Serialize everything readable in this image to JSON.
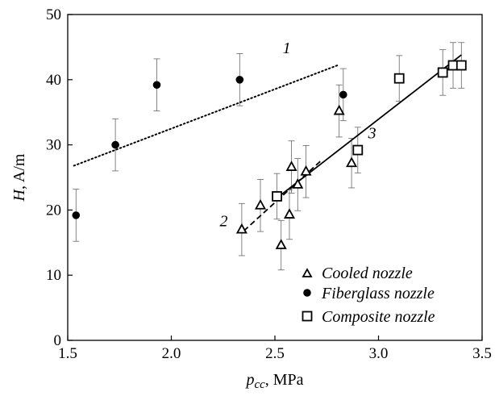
{
  "chart_data": {
    "type": "scatter",
    "x_axis": {
      "label_main": "p",
      "label_sub": "cc",
      "label_unit": ", MPa",
      "range": [
        1.5,
        3.5
      ],
      "ticks": [
        "1.5",
        "2.0",
        "2.5",
        "3.0",
        "3.5"
      ],
      "tick_values": [
        1.5,
        2.0,
        2.5,
        3.0,
        3.5
      ]
    },
    "y_axis": {
      "label_main": "H",
      "label_unit": ", A/m",
      "range": [
        0,
        50
      ],
      "ticks": [
        "0",
        "10",
        "20",
        "30",
        "40",
        "50"
      ],
      "tick_values": [
        0,
        10,
        20,
        30,
        40,
        50
      ]
    },
    "grid": false,
    "legend_position": "bottom-right",
    "series": [
      {
        "name": "Cooled nozzle",
        "marker": "triangle-open",
        "points": [
          {
            "x": 2.34,
            "y": 17.0,
            "err": 4.0
          },
          {
            "x": 2.43,
            "y": 20.7,
            "err": 4.0
          },
          {
            "x": 2.53,
            "y": 14.6,
            "err": 3.8
          },
          {
            "x": 2.57,
            "y": 19.3,
            "err": 3.8
          },
          {
            "x": 2.58,
            "y": 26.6,
            "err": 4.0
          },
          {
            "x": 2.61,
            "y": 23.9,
            "err": 4.0
          },
          {
            "x": 2.65,
            "y": 25.9,
            "err": 4.0
          },
          {
            "x": 2.81,
            "y": 35.2,
            "err": 4.0
          },
          {
            "x": 2.87,
            "y": 27.2,
            "err": 3.8
          }
        ]
      },
      {
        "name": "Fiberglass nozzle",
        "marker": "circle-filled",
        "points": [
          {
            "x": 1.54,
            "y": 19.2,
            "err": 4.0
          },
          {
            "x": 1.73,
            "y": 30.0,
            "err": 4.0
          },
          {
            "x": 1.93,
            "y": 39.2,
            "err": 4.0
          },
          {
            "x": 2.33,
            "y": 40.0,
            "err": 4.0
          },
          {
            "x": 2.83,
            "y": 37.7,
            "err": 4.0
          }
        ]
      },
      {
        "name": "Composite nozzle",
        "marker": "square-open",
        "points": [
          {
            "x": 2.51,
            "y": 22.1,
            "err": 3.5
          },
          {
            "x": 2.9,
            "y": 29.2,
            "err": 3.5
          },
          {
            "x": 3.1,
            "y": 40.2,
            "err": 3.5
          },
          {
            "x": 3.31,
            "y": 41.1,
            "err": 3.5
          },
          {
            "x": 3.36,
            "y": 42.2,
            "err": 3.5
          },
          {
            "x": 3.4,
            "y": 42.2,
            "err": 3.5
          }
        ]
      }
    ],
    "fit_lines": [
      {
        "label": "1",
        "style": "dotted",
        "x": [
          1.53,
          2.81
        ],
        "y": [
          26.8,
          42.3
        ]
      },
      {
        "label": "2",
        "style": "dashed",
        "x": [
          2.35,
          2.72
        ],
        "y": [
          16.8,
          27.5
        ]
      },
      {
        "label": "3",
        "style": "solid",
        "x": [
          2.5,
          3.4
        ],
        "y": [
          21.6,
          43.8
        ]
      }
    ]
  }
}
